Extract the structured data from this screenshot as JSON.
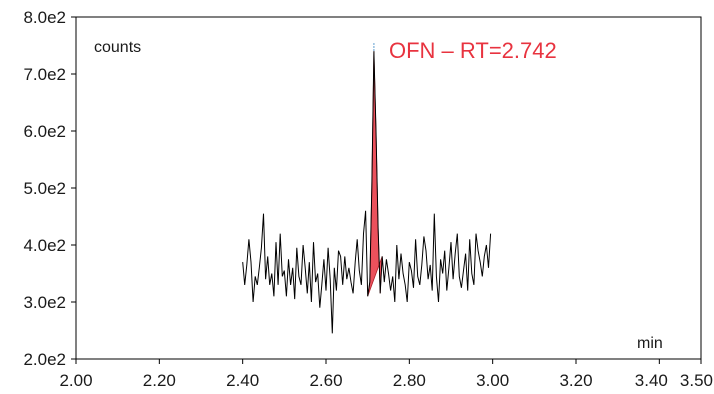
{
  "chart_data": {
    "type": "line",
    "ylabel": "counts",
    "xlabel": "min",
    "annotation": "OFN – RT=2.742",
    "xlim": [
      2.0,
      3.5
    ],
    "ylim": [
      200,
      800
    ],
    "x_ticks": [
      {
        "value": 2.0,
        "label": "2.00"
      },
      {
        "value": 2.2,
        "label": "2.20"
      },
      {
        "value": 2.4,
        "label": "2.40"
      },
      {
        "value": 2.6,
        "label": "2.60"
      },
      {
        "value": 2.8,
        "label": "2.80"
      },
      {
        "value": 3.0,
        "label": "3.00"
      },
      {
        "value": 3.2,
        "label": "3.20"
      },
      {
        "value": 3.4,
        "label": "3.40"
      },
      {
        "value": 3.5,
        "label": "3.50"
      }
    ],
    "y_ticks": [
      {
        "value": 200,
        "label": "2.0e2"
      },
      {
        "value": 300,
        "label": "3.0e2"
      },
      {
        "value": 400,
        "label": "4.0e2"
      },
      {
        "value": 500,
        "label": "5.0e2"
      },
      {
        "value": 600,
        "label": "6.0e2"
      },
      {
        "value": 700,
        "label": "7.0e2"
      },
      {
        "value": 800,
        "label": "8.0e2"
      }
    ],
    "series": [
      {
        "x": [
          2.4,
          2.405,
          2.41,
          2.415,
          2.42,
          2.425,
          2.43,
          2.435,
          2.44,
          2.445,
          2.45,
          2.455,
          2.46,
          2.465,
          2.47,
          2.475,
          2.48,
          2.485,
          2.49,
          2.495,
          2.5,
          2.505,
          2.51,
          2.515,
          2.52,
          2.525,
          2.53,
          2.535,
          2.54,
          2.545,
          2.55,
          2.555,
          2.56,
          2.565,
          2.57,
          2.575,
          2.58,
          2.585,
          2.59,
          2.595,
          2.6,
          2.605,
          2.61,
          2.615,
          2.62,
          2.625,
          2.63,
          2.635,
          2.64,
          2.645,
          2.65,
          2.655,
          2.66,
          2.665,
          2.67,
          2.675,
          2.68,
          2.685,
          2.69,
          2.695,
          2.7,
          2.705,
          2.71,
          2.715,
          2.72,
          2.725,
          2.73,
          2.735,
          2.74,
          2.745,
          2.75,
          2.755,
          2.76,
          2.765,
          2.77,
          2.775,
          2.78,
          2.785,
          2.79,
          2.795,
          2.8,
          2.805,
          2.81,
          2.815,
          2.82,
          2.825,
          2.83,
          2.835,
          2.84,
          2.845,
          2.85,
          2.855,
          2.86,
          2.865,
          2.87,
          2.875,
          2.88,
          2.885,
          2.89,
          2.895,
          2.9,
          2.905,
          2.91,
          2.915,
          2.92,
          2.925,
          2.93,
          2.935,
          2.94,
          2.945,
          2.95,
          2.955,
          2.96,
          2.965,
          2.97,
          2.975,
          2.98,
          2.985,
          2.99,
          2.995
        ],
        "y": [
          370,
          330,
          365,
          410,
          370,
          300,
          345,
          330,
          360,
          395,
          455,
          340,
          380,
          330,
          350,
          310,
          405,
          330,
          420,
          345,
          355,
          310,
          375,
          330,
          360,
          305,
          395,
          345,
          330,
          400,
          360,
          315,
          370,
          300,
          405,
          335,
          350,
          290,
          330,
          375,
          320,
          395,
          340,
          245,
          360,
          320,
          390,
          380,
          330,
          380,
          340,
          360,
          335,
          315,
          370,
          410,
          355,
          330,
          420,
          460,
          310,
          335,
          500,
          740,
          600,
          430,
          315,
          380,
          335,
          375,
          350,
          320,
          345,
          300,
          400,
          340,
          385,
          350,
          330,
          300,
          370,
          355,
          325,
          410,
          345,
          330,
          365,
          415,
          390,
          340,
          365,
          320,
          455,
          345,
          300,
          375,
          350,
          390,
          320,
          360,
          405,
          340,
          385,
          420,
          345,
          325,
          355,
          385,
          320,
          410,
          350,
          330,
          420,
          390,
          370,
          345,
          380,
          400,
          360,
          420
        ],
        "y_override_note": "",
        "color": "#000000"
      }
    ],
    "peak_fill": {
      "color": "#e8333f"
    }
  }
}
